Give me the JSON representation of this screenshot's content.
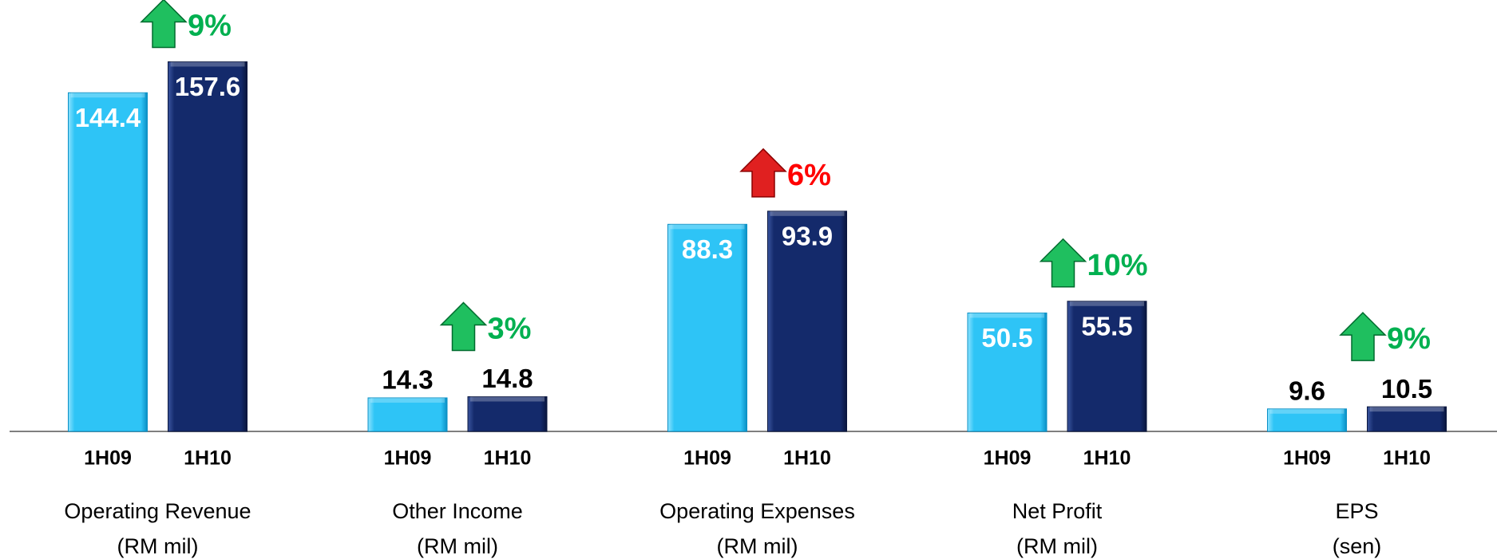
{
  "chart_data": {
    "type": "bar",
    "categories": [
      "Operating Revenue",
      "Other Income",
      "Operating Expenses",
      "Net Profit",
      "EPS"
    ],
    "units": [
      "(RM mil)",
      "(RM mil)",
      "(RM mil)",
      "(RM mil)",
      "(sen)"
    ],
    "series": [
      {
        "name": "1H09",
        "color": "#2ec4f6",
        "values": [
          144.4,
          14.3,
          88.3,
          50.5,
          9.6
        ]
      },
      {
        "name": "1H10",
        "color": "#142a6b",
        "values": [
          157.6,
          14.8,
          93.9,
          55.5,
          10.5
        ]
      }
    ],
    "changes": [
      "9%",
      "3%",
      "6%",
      "10%",
      "9%"
    ],
    "change_colors": [
      "#00b050",
      "#00b050",
      "#ff0000",
      "#00b050",
      "#00b050"
    ],
    "ylim": [
      0,
      170
    ]
  }
}
